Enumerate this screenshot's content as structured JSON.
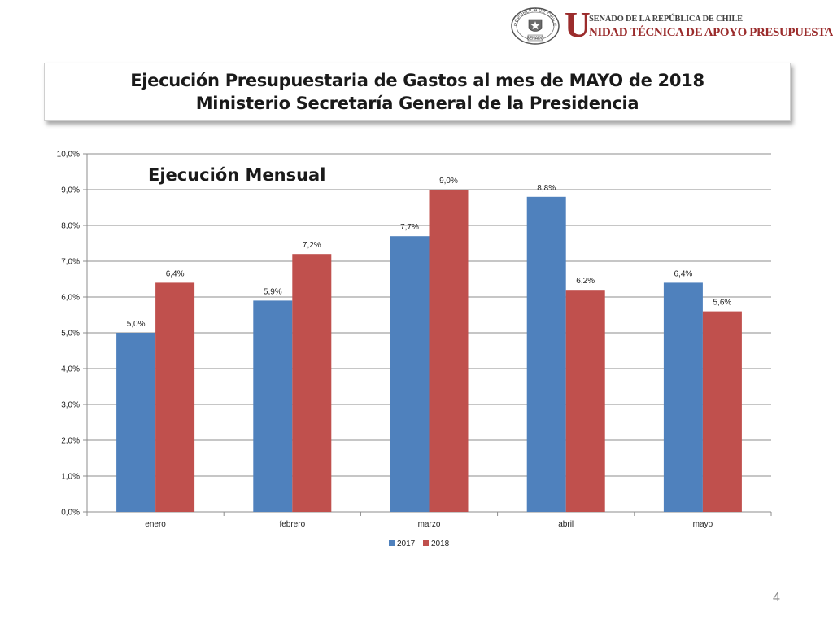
{
  "header": {
    "seal_text_top": "REPÚBLICA DE CHILE",
    "seal_text_bottom": "SENADO",
    "logo_initial": "U",
    "logo_line1": "SENADO DE LA REPÚBLICA DE CHILE",
    "logo_line2": "NIDAD TÉCNICA DE APOYO PRESUPUESTARIO"
  },
  "title": {
    "line1": "Ejecución Presupuestaria de Gastos al mes de MAYO de 2018",
    "line2": "Ministerio Secretaría General de la Presidencia"
  },
  "page_number": "4",
  "colors": {
    "2017": "#4f81bd",
    "2018": "#c0504d",
    "grid": "#8c8c8c"
  },
  "chart_data": {
    "type": "bar",
    "title": "Ejecución Mensual",
    "categories": [
      "enero",
      "febrero",
      "marzo",
      "abril",
      "mayo"
    ],
    "series": [
      {
        "name": "2017",
        "values": [
          5.0,
          5.9,
          7.7,
          8.8,
          6.4
        ],
        "labels": [
          "5,0%",
          "5,9%",
          "7,7%",
          "8,8%",
          "6,4%"
        ]
      },
      {
        "name": "2018",
        "values": [
          6.4,
          7.2,
          9.0,
          6.2,
          5.6
        ],
        "labels": [
          "6,4%",
          "7,2%",
          "9,0%",
          "6,2%",
          "5,6%"
        ]
      }
    ],
    "ylim": [
      0,
      10
    ],
    "yticks": [
      "0,0%",
      "1,0%",
      "2,0%",
      "3,0%",
      "4,0%",
      "5,0%",
      "6,0%",
      "7,0%",
      "8,0%",
      "9,0%",
      "10,0%"
    ],
    "grid": true,
    "legend_position": "bottom"
  }
}
